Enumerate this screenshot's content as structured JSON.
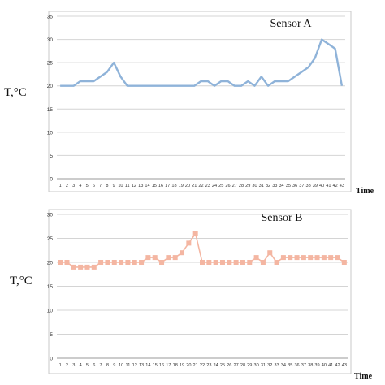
{
  "chart_data": [
    {
      "type": "line",
      "title": "Sensor A",
      "xlabel": "Time",
      "ylabel": "T,°C",
      "ylim": [
        0,
        35
      ],
      "yticks": [
        0,
        5,
        10,
        15,
        20,
        25,
        30,
        35
      ],
      "grid": true,
      "line_color": "#8fb3d9",
      "categories": [
        "1",
        "2",
        "3",
        "4",
        "5",
        "6",
        "7",
        "8",
        "9",
        "10",
        "11",
        "12",
        "13",
        "14",
        "15",
        "16",
        "17",
        "18",
        "19",
        "20",
        "21",
        "22",
        "23",
        "24",
        "25",
        "26",
        "27",
        "28",
        "29",
        "30",
        "31",
        "32",
        "33",
        "34",
        "35",
        "36",
        "37",
        "38",
        "39",
        "40",
        "41",
        "42",
        "43"
      ],
      "values": [
        20,
        20,
        20,
        21,
        21,
        21,
        22,
        23,
        25,
        22,
        20,
        20,
        20,
        20,
        20,
        20,
        20,
        20,
        20,
        20,
        20,
        21,
        21,
        20,
        21,
        21,
        20,
        20,
        21,
        20,
        22,
        20,
        21,
        21,
        21,
        22,
        23,
        24,
        26,
        30,
        29,
        28,
        20
      ]
    },
    {
      "type": "line",
      "title": "Sensor B",
      "xlabel": "Time",
      "ylabel": "T,°C",
      "ylim": [
        0,
        30
      ],
      "yticks": [
        0,
        5,
        10,
        15,
        20,
        25,
        30
      ],
      "grid": true,
      "markers": "square",
      "line_color": "#f4b6a2",
      "categories": [
        "1",
        "2",
        "3",
        "4",
        "5",
        "6",
        "7",
        "8",
        "9",
        "10",
        "11",
        "12",
        "13",
        "14",
        "15",
        "16",
        "17",
        "18",
        "19",
        "20",
        "21",
        "22",
        "23",
        "24",
        "25",
        "26",
        "27",
        "28",
        "29",
        "30",
        "31",
        "32",
        "33",
        "34",
        "35",
        "36",
        "37",
        "38",
        "39",
        "40",
        "41",
        "42",
        "43"
      ],
      "values": [
        20,
        20,
        19,
        19,
        19,
        19,
        20,
        20,
        20,
        20,
        20,
        20,
        20,
        21,
        21,
        20,
        21,
        21,
        22,
        24,
        26,
        20,
        20,
        20,
        20,
        20,
        20,
        20,
        20,
        21,
        20,
        22,
        20,
        21,
        21,
        21,
        21,
        21,
        21,
        21,
        21,
        21,
        20
      ]
    }
  ]
}
